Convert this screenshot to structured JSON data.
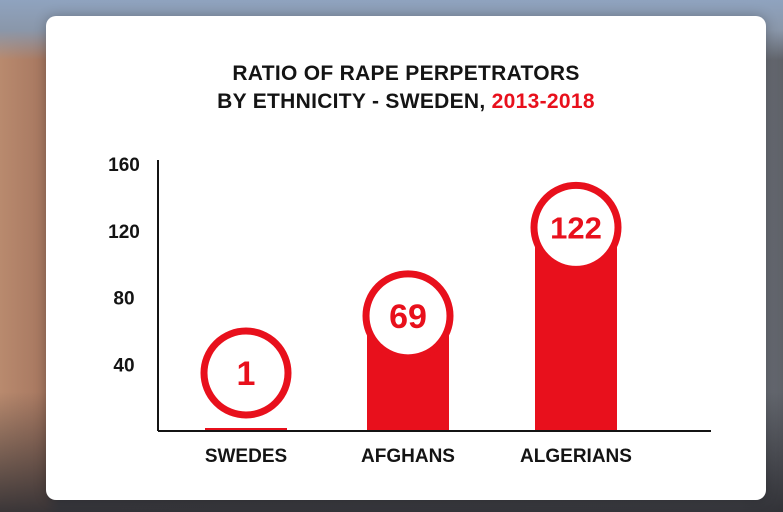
{
  "chart_data": {
    "type": "bar",
    "title_line1": "RATIO OF RAPE PERPETRATORS",
    "title_line2": "BY ETHNICITY - SWEDEN,",
    "title_highlight": "2013-2018",
    "categories": [
      "SWEDES",
      "AFGHANS",
      "ALGERIANS"
    ],
    "values": [
      1,
      69,
      122
    ],
    "data_labels": [
      "1",
      "69",
      "122"
    ],
    "yticks": [
      40,
      80,
      120,
      160
    ],
    "ylim": [
      0,
      160
    ],
    "grid": false,
    "legend": "none",
    "colors": {
      "bar": "#e8101c",
      "text": "#141414",
      "accent": "#e8101c",
      "card": "#ffffff"
    }
  }
}
